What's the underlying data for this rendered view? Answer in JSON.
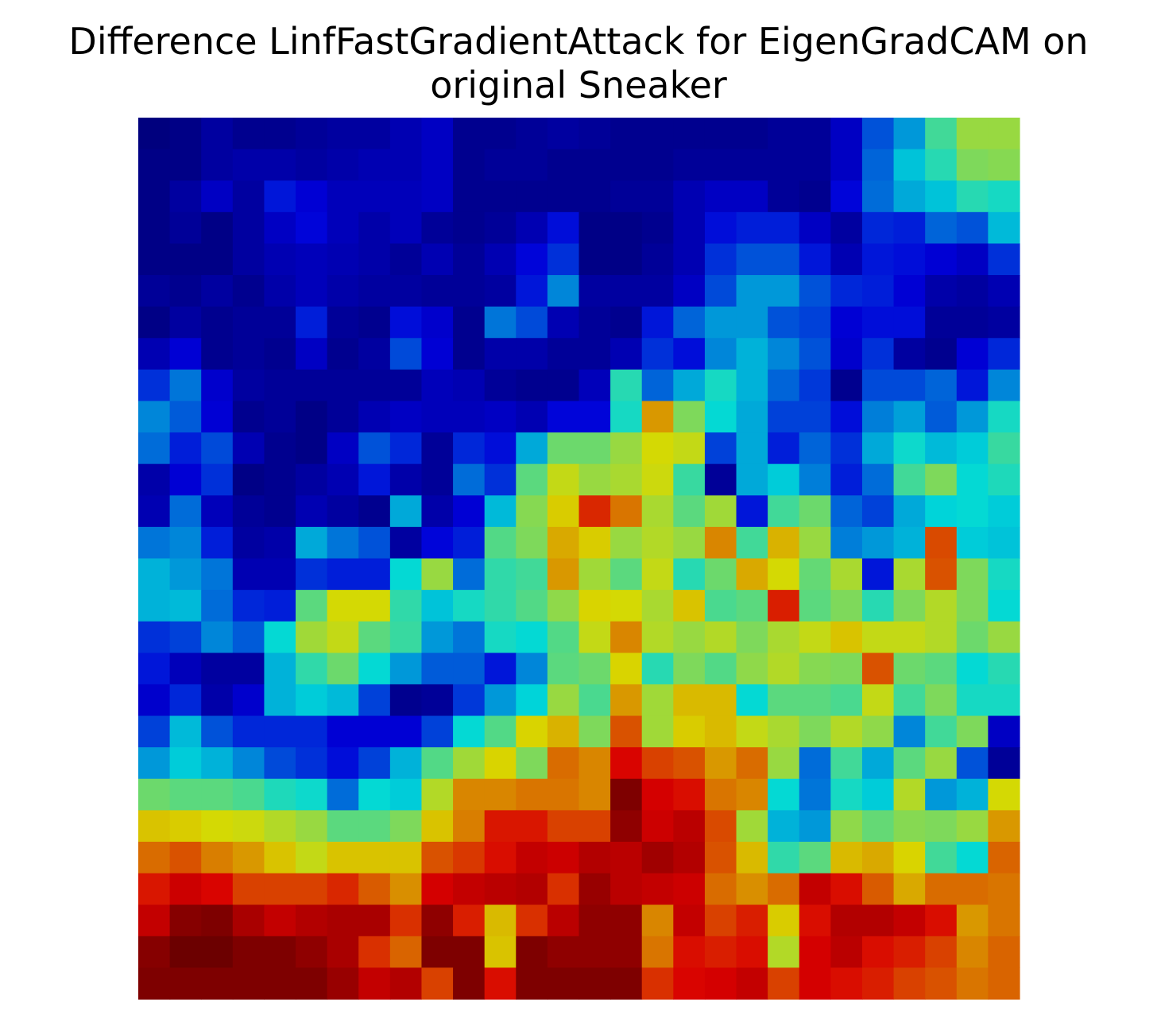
{
  "chart_data": {
    "type": "heatmap",
    "title_lines": [
      "Difference LinfFastGradientAttack for EigenGradCAM on",
      "original Sneaker"
    ],
    "colormap": "jet",
    "value_range": [
      0,
      1
    ],
    "axes_visible": false,
    "rows": 28,
    "cols": 28,
    "values": [
      [
        0.02,
        0.03,
        0.06,
        0.04,
        0.04,
        0.05,
        0.06,
        0.06,
        0.08,
        0.1,
        0.04,
        0.04,
        0.05,
        0.06,
        0.05,
        0.04,
        0.04,
        0.04,
        0.04,
        0.04,
        0.05,
        0.05,
        0.1,
        0.22,
        0.3,
        0.45,
        0.55,
        0.55
      ],
      [
        0.03,
        0.03,
        0.06,
        0.07,
        0.07,
        0.06,
        0.07,
        0.08,
        0.08,
        0.1,
        0.04,
        0.05,
        0.05,
        0.04,
        0.04,
        0.04,
        0.04,
        0.05,
        0.05,
        0.05,
        0.05,
        0.05,
        0.1,
        0.24,
        0.35,
        0.42,
        0.52,
        0.53
      ],
      [
        0.03,
        0.06,
        0.1,
        0.06,
        0.15,
        0.12,
        0.09,
        0.09,
        0.09,
        0.1,
        0.04,
        0.04,
        0.04,
        0.04,
        0.04,
        0.05,
        0.05,
        0.08,
        0.1,
        0.1,
        0.05,
        0.04,
        0.13,
        0.25,
        0.32,
        0.35,
        0.42,
        0.4
      ],
      [
        0.03,
        0.05,
        0.03,
        0.06,
        0.1,
        0.13,
        0.09,
        0.07,
        0.09,
        0.05,
        0.04,
        0.05,
        0.08,
        0.14,
        0.03,
        0.03,
        0.04,
        0.08,
        0.14,
        0.16,
        0.16,
        0.1,
        0.06,
        0.17,
        0.16,
        0.24,
        0.22,
        0.34
      ],
      [
        0.03,
        0.03,
        0.03,
        0.06,
        0.08,
        0.09,
        0.08,
        0.07,
        0.05,
        0.08,
        0.05,
        0.08,
        0.13,
        0.18,
        0.03,
        0.03,
        0.05,
        0.08,
        0.18,
        0.22,
        0.22,
        0.15,
        0.08,
        0.15,
        0.14,
        0.12,
        0.1,
        0.18
      ],
      [
        0.05,
        0.04,
        0.06,
        0.04,
        0.07,
        0.09,
        0.07,
        0.06,
        0.06,
        0.05,
        0.05,
        0.06,
        0.15,
        0.28,
        0.06,
        0.06,
        0.06,
        0.1,
        0.21,
        0.3,
        0.3,
        0.22,
        0.17,
        0.16,
        0.12,
        0.07,
        0.06,
        0.08
      ],
      [
        0.03,
        0.06,
        0.04,
        0.05,
        0.05,
        0.16,
        0.05,
        0.04,
        0.14,
        0.11,
        0.04,
        0.26,
        0.21,
        0.08,
        0.05,
        0.04,
        0.15,
        0.24,
        0.3,
        0.3,
        0.22,
        0.2,
        0.12,
        0.14,
        0.14,
        0.05,
        0.05,
        0.06
      ],
      [
        0.08,
        0.12,
        0.04,
        0.05,
        0.04,
        0.1,
        0.04,
        0.06,
        0.21,
        0.12,
        0.04,
        0.07,
        0.07,
        0.05,
        0.05,
        0.08,
        0.18,
        0.14,
        0.28,
        0.33,
        0.28,
        0.22,
        0.11,
        0.18,
        0.06,
        0.04,
        0.12,
        0.17
      ],
      [
        0.18,
        0.26,
        0.11,
        0.06,
        0.05,
        0.05,
        0.05,
        0.05,
        0.05,
        0.09,
        0.08,
        0.05,
        0.04,
        0.04,
        0.09,
        0.42,
        0.24,
        0.32,
        0.4,
        0.33,
        0.24,
        0.19,
        0.04,
        0.21,
        0.21,
        0.24,
        0.15,
        0.28
      ],
      [
        0.28,
        0.23,
        0.12,
        0.04,
        0.05,
        0.03,
        0.05,
        0.08,
        0.1,
        0.09,
        0.09,
        0.1,
        0.08,
        0.13,
        0.13,
        0.4,
        0.7,
        0.52,
        0.38,
        0.32,
        0.2,
        0.2,
        0.14,
        0.27,
        0.31,
        0.23,
        0.3,
        0.4
      ],
      [
        0.25,
        0.16,
        0.21,
        0.08,
        0.04,
        0.03,
        0.1,
        0.22,
        0.17,
        0.05,
        0.17,
        0.14,
        0.32,
        0.5,
        0.5,
        0.55,
        0.62,
        0.6,
        0.2,
        0.32,
        0.16,
        0.24,
        0.18,
        0.32,
        0.39,
        0.34,
        0.36,
        0.44
      ],
      [
        0.07,
        0.12,
        0.18,
        0.03,
        0.04,
        0.06,
        0.08,
        0.15,
        0.07,
        0.05,
        0.25,
        0.18,
        0.48,
        0.6,
        0.55,
        0.57,
        0.61,
        0.44,
        0.05,
        0.32,
        0.36,
        0.27,
        0.16,
        0.25,
        0.45,
        0.52,
        0.38,
        0.41
      ],
      [
        0.08,
        0.25,
        0.09,
        0.05,
        0.04,
        0.08,
        0.06,
        0.04,
        0.32,
        0.07,
        0.12,
        0.34,
        0.53,
        0.64,
        0.83,
        0.74,
        0.57,
        0.48,
        0.56,
        0.15,
        0.45,
        0.5,
        0.24,
        0.2,
        0.32,
        0.37,
        0.38,
        0.36
      ],
      [
        0.26,
        0.28,
        0.16,
        0.06,
        0.07,
        0.32,
        0.26,
        0.22,
        0.06,
        0.13,
        0.16,
        0.47,
        0.52,
        0.68,
        0.64,
        0.55,
        0.58,
        0.55,
        0.72,
        0.45,
        0.67,
        0.55,
        0.27,
        0.3,
        0.33,
        0.79,
        0.36,
        0.35
      ],
      [
        0.33,
        0.3,
        0.26,
        0.08,
        0.08,
        0.18,
        0.16,
        0.16,
        0.38,
        0.55,
        0.25,
        0.43,
        0.45,
        0.7,
        0.56,
        0.48,
        0.6,
        0.42,
        0.5,
        0.68,
        0.62,
        0.49,
        0.57,
        0.15,
        0.57,
        0.78,
        0.52,
        0.4
      ],
      [
        0.33,
        0.34,
        0.25,
        0.17,
        0.16,
        0.48,
        0.62,
        0.62,
        0.43,
        0.35,
        0.4,
        0.43,
        0.47,
        0.54,
        0.63,
        0.62,
        0.57,
        0.65,
        0.46,
        0.48,
        0.84,
        0.48,
        0.52,
        0.42,
        0.52,
        0.58,
        0.52,
        0.38
      ],
      [
        0.18,
        0.2,
        0.28,
        0.23,
        0.38,
        0.56,
        0.6,
        0.48,
        0.44,
        0.3,
        0.26,
        0.4,
        0.38,
        0.47,
        0.6,
        0.72,
        0.58,
        0.55,
        0.58,
        0.52,
        0.57,
        0.6,
        0.65,
        0.6,
        0.6,
        0.58,
        0.5,
        0.55
      ],
      [
        0.15,
        0.09,
        0.06,
        0.06,
        0.33,
        0.43,
        0.5,
        0.38,
        0.3,
        0.23,
        0.23,
        0.15,
        0.28,
        0.48,
        0.5,
        0.63,
        0.42,
        0.52,
        0.47,
        0.54,
        0.58,
        0.53,
        0.52,
        0.78,
        0.5,
        0.48,
        0.38,
        0.42
      ],
      [
        0.11,
        0.17,
        0.07,
        0.11,
        0.33,
        0.36,
        0.34,
        0.2,
        0.04,
        0.05,
        0.19,
        0.3,
        0.37,
        0.55,
        0.46,
        0.7,
        0.56,
        0.66,
        0.66,
        0.38,
        0.48,
        0.48,
        0.46,
        0.6,
        0.45,
        0.52,
        0.4,
        0.4
      ],
      [
        0.2,
        0.34,
        0.22,
        0.17,
        0.17,
        0.17,
        0.12,
        0.12,
        0.12,
        0.2,
        0.38,
        0.47,
        0.63,
        0.67,
        0.52,
        0.78,
        0.56,
        0.64,
        0.66,
        0.6,
        0.57,
        0.52,
        0.58,
        0.54,
        0.28,
        0.45,
        0.52,
        0.1
      ],
      [
        0.3,
        0.36,
        0.33,
        0.28,
        0.21,
        0.18,
        0.14,
        0.2,
        0.33,
        0.47,
        0.56,
        0.63,
        0.52,
        0.75,
        0.72,
        0.87,
        0.8,
        0.78,
        0.7,
        0.75,
        0.55,
        0.25,
        0.45,
        0.32,
        0.48,
        0.55,
        0.22,
        0.05
      ],
      [
        0.5,
        0.48,
        0.48,
        0.46,
        0.41,
        0.39,
        0.25,
        0.38,
        0.36,
        0.58,
        0.72,
        0.72,
        0.74,
        0.74,
        0.72,
        0.98,
        0.88,
        0.86,
        0.74,
        0.72,
        0.38,
        0.26,
        0.4,
        0.36,
        0.58,
        0.3,
        0.33,
        0.62
      ],
      [
        0.65,
        0.64,
        0.62,
        0.61,
        0.58,
        0.55,
        0.48,
        0.48,
        0.52,
        0.65,
        0.73,
        0.85,
        0.85,
        0.8,
        0.8,
        0.96,
        0.89,
        0.91,
        0.79,
        0.56,
        0.33,
        0.3,
        0.54,
        0.49,
        0.53,
        0.52,
        0.55,
        0.7
      ],
      [
        0.75,
        0.78,
        0.73,
        0.7,
        0.65,
        0.6,
        0.65,
        0.65,
        0.65,
        0.78,
        0.81,
        0.86,
        0.9,
        0.89,
        0.92,
        0.91,
        0.94,
        0.92,
        0.78,
        0.66,
        0.43,
        0.48,
        0.66,
        0.68,
        0.63,
        0.45,
        0.38,
        0.76
      ],
      [
        0.85,
        0.89,
        0.87,
        0.8,
        0.8,
        0.8,
        0.83,
        0.77,
        0.71,
        0.88,
        0.9,
        0.91,
        0.92,
        0.82,
        0.95,
        0.91,
        0.9,
        0.89,
        0.75,
        0.71,
        0.75,
        0.9,
        0.86,
        0.77,
        0.68,
        0.75,
        0.75,
        0.74
      ],
      [
        0.9,
        0.97,
        0.98,
        0.93,
        0.9,
        0.92,
        0.93,
        0.93,
        0.82,
        0.96,
        0.84,
        0.66,
        0.82,
        0.91,
        0.96,
        0.96,
        0.72,
        0.9,
        0.8,
        0.84,
        0.64,
        0.86,
        0.92,
        0.92,
        0.9,
        0.86,
        0.7,
        0.74
      ],
      [
        0.97,
        1.0,
        1.0,
        0.98,
        0.98,
        0.96,
        0.93,
        0.82,
        0.76,
        0.98,
        0.98,
        0.65,
        0.98,
        0.96,
        0.96,
        0.96,
        0.74,
        0.86,
        0.84,
        0.86,
        0.58,
        0.88,
        0.91,
        0.86,
        0.84,
        0.8,
        0.72,
        0.76
      ],
      [
        0.98,
        0.98,
        0.98,
        0.98,
        0.98,
        0.98,
        0.95,
        0.9,
        0.92,
        0.8,
        0.98,
        0.86,
        0.98,
        0.98,
        0.98,
        0.98,
        0.82,
        0.87,
        0.88,
        0.9,
        0.8,
        0.88,
        0.86,
        0.84,
        0.8,
        0.78,
        0.74,
        0.76
      ]
    ]
  }
}
